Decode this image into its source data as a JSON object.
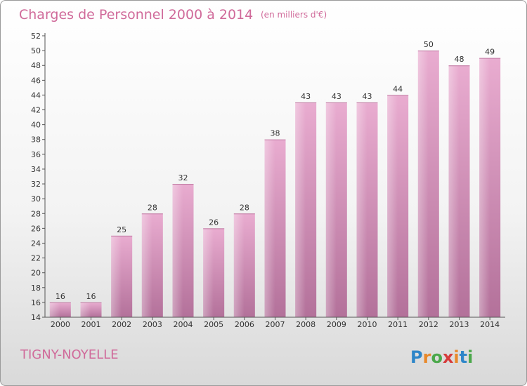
{
  "title": "Charges de Personnel 2000 à 2014",
  "unit": "(en milliers d'€)",
  "commune": "TIGNY-NOYELLE",
  "logo": "Proxiti",
  "chart_data": {
    "type": "bar",
    "title": "Charges de Personnel 2000 à 2014",
    "subtitle": "(en milliers d'€)",
    "categories": [
      "2000",
      "2001",
      "2002",
      "2003",
      "2004",
      "2005",
      "2006",
      "2007",
      "2008",
      "2009",
      "2010",
      "2011",
      "2012",
      "2013",
      "2014"
    ],
    "values": [
      16,
      16,
      25,
      28,
      32,
      26,
      28,
      38,
      43,
      43,
      43,
      44,
      50,
      48,
      49
    ],
    "ylim": [
      14,
      52
    ],
    "yticks": [
      14,
      16,
      18,
      20,
      22,
      24,
      26,
      28,
      30,
      32,
      34,
      36,
      38,
      40,
      42,
      44,
      46,
      48,
      50,
      52
    ],
    "xlabel": "",
    "ylabel": "",
    "grid": false,
    "bar_color": "#d98cb3"
  },
  "colors": {
    "accent": "#d06a9a",
    "bar_top": "#e8a8cc",
    "bar_bottom": "#b5739b"
  }
}
